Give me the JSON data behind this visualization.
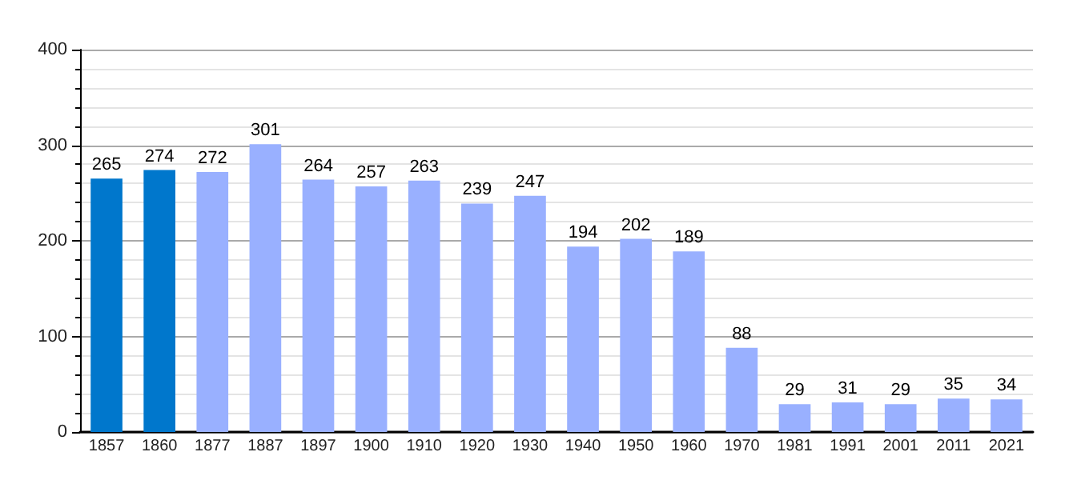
{
  "chart_data": {
    "type": "bar",
    "categories": [
      "1857",
      "1860",
      "1877",
      "1887",
      "1897",
      "1900",
      "1910",
      "1920",
      "1930",
      "1940",
      "1950",
      "1960",
      "1970",
      "1981",
      "1991",
      "2001",
      "2011",
      "2021"
    ],
    "values": [
      265,
      274,
      272,
      301,
      264,
      257,
      263,
      239,
      247,
      194,
      202,
      189,
      88,
      29,
      31,
      29,
      35,
      34
    ],
    "colors": [
      "#0077cc",
      "#0077cc",
      "#99b0ff",
      "#99b0ff",
      "#99b0ff",
      "#99b0ff",
      "#99b0ff",
      "#99b0ff",
      "#99b0ff",
      "#99b0ff",
      "#99b0ff",
      "#99b0ff",
      "#99b0ff",
      "#99b0ff",
      "#99b0ff",
      "#99b0ff",
      "#99b0ff",
      "#99b0ff"
    ],
    "ylim": [
      0,
      400
    ],
    "yticks": [
      0,
      100,
      200,
      300,
      400
    ],
    "grid": "y",
    "data_labels": true
  }
}
